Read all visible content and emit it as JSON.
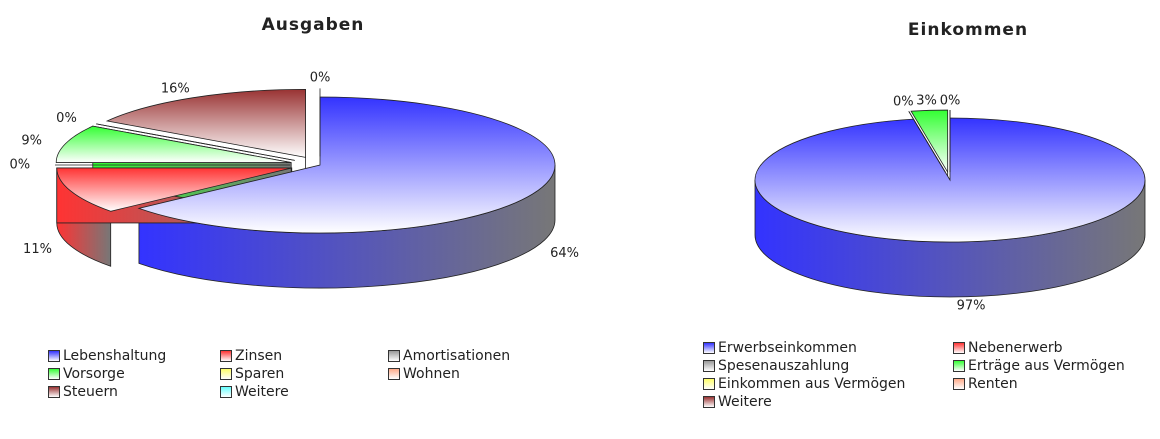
{
  "chart_data": [
    {
      "type": "pie",
      "title": "Ausgaben",
      "categories": [
        "Lebenshaltung",
        "Zinsen",
        "Amortisationen",
        "Vorsorge",
        "Sparen",
        "Wohnen",
        "Steuern",
        "Weitere"
      ],
      "values": [
        64,
        11,
        0,
        9,
        0,
        0,
        16,
        0
      ],
      "value_labels": [
        "64%",
        "11%",
        "0%",
        "9%",
        "0%",
        null,
        "16%",
        "0%"
      ],
      "colors": [
        "#3333ff",
        "#ff3333",
        "#999999",
        "#33ff33",
        "#ffff66",
        "#ffaa88",
        "#993333",
        "#66ffff"
      ]
    },
    {
      "type": "pie",
      "title": "Einkommen",
      "categories": [
        "Erwerbseinkommen",
        "Nebenerwerb",
        "Spesenauszahlung",
        "Erträge aus Vermögen",
        "Einkommen aus Vermögen",
        "Renten",
        "Weitere"
      ],
      "values": [
        97,
        0,
        0,
        3,
        0,
        0,
        0
      ],
      "value_labels": [
        "97%",
        "0%",
        null,
        "3%",
        null,
        null,
        "0%"
      ],
      "colors": [
        "#3333ff",
        "#ff3333",
        "#999999",
        "#33ff33",
        "#ffff66",
        "#ffaa88",
        "#993333"
      ]
    }
  ]
}
